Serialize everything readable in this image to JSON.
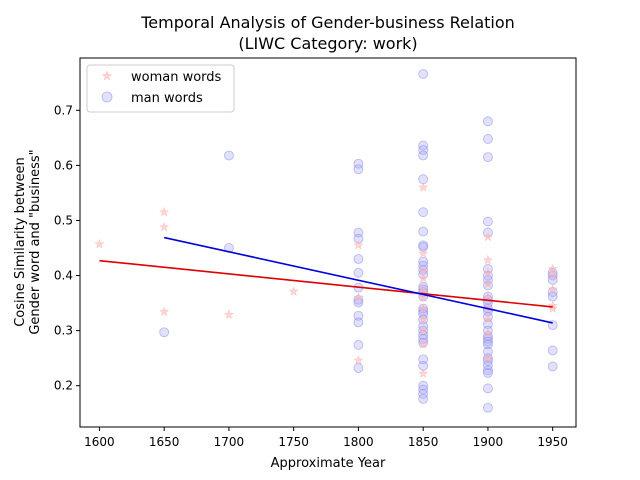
{
  "chart_data": {
    "type": "scatter",
    "title_lines": [
      "Temporal Analysis of Gender-business Relation",
      "(LIWC Category: work)"
    ],
    "xlabel": "Approximate Year",
    "ylabel_lines": [
      "Cosine Similarity between",
      "Gender word and \"business\""
    ],
    "xlim": [
      1585,
      1968
    ],
    "ylim": [
      0.125,
      0.795
    ],
    "xticks": [
      1600,
      1650,
      1700,
      1750,
      1800,
      1850,
      1900,
      1950
    ],
    "yticks": [
      0.2,
      0.3,
      0.4,
      0.5,
      0.6,
      0.7
    ],
    "legend_position": "upper-left",
    "series": [
      {
        "name": "woman words",
        "marker": "star",
        "color": "#ffb3b3",
        "trend_color": "#dd0000",
        "trend": {
          "x": [
            1600,
            1950
          ],
          "y": [
            0.427,
            0.343
          ]
        },
        "points": [
          [
            1600,
            0.457
          ],
          [
            1650,
            0.515
          ],
          [
            1650,
            0.488
          ],
          [
            1650,
            0.334
          ],
          [
            1700,
            0.329
          ],
          [
            1750,
            0.371
          ],
          [
            1800,
            0.455
          ],
          [
            1800,
            0.36
          ],
          [
            1800,
            0.246
          ],
          [
            1850,
            0.56
          ],
          [
            1850,
            0.44
          ],
          [
            1850,
            0.41
          ],
          [
            1850,
            0.395
          ],
          [
            1850,
            0.375
          ],
          [
            1850,
            0.36
          ],
          [
            1850,
            0.34
          ],
          [
            1850,
            0.32
          ],
          [
            1850,
            0.3
          ],
          [
            1850,
            0.275
          ],
          [
            1850,
            0.222
          ],
          [
            1900,
            0.47
          ],
          [
            1900,
            0.428
          ],
          [
            1900,
            0.405
          ],
          [
            1900,
            0.385
          ],
          [
            1900,
            0.36
          ],
          [
            1900,
            0.34
          ],
          [
            1900,
            0.32
          ],
          [
            1900,
            0.295
          ],
          [
            1900,
            0.25
          ],
          [
            1950,
            0.412
          ],
          [
            1950,
            0.4
          ],
          [
            1950,
            0.375
          ],
          [
            1950,
            0.345
          ],
          [
            1950,
            0.34
          ]
        ]
      },
      {
        "name": "man words",
        "marker": "circle",
        "color": "#aaaaf5",
        "trend_color": "#0000dd",
        "trend": {
          "x": [
            1650,
            1950
          ],
          "y": [
            0.469,
            0.314
          ]
        },
        "points": [
          [
            1650,
            0.297
          ],
          [
            1700,
            0.618
          ],
          [
            1700,
            0.45
          ],
          [
            1800,
            0.603
          ],
          [
            1800,
            0.593
          ],
          [
            1800,
            0.478
          ],
          [
            1800,
            0.467
          ],
          [
            1800,
            0.43
          ],
          [
            1800,
            0.405
          ],
          [
            1800,
            0.378
          ],
          [
            1800,
            0.356
          ],
          [
            1800,
            0.351
          ],
          [
            1800,
            0.327
          ],
          [
            1800,
            0.315
          ],
          [
            1800,
            0.274
          ],
          [
            1800,
            0.232
          ],
          [
            1850,
            0.766
          ],
          [
            1850,
            0.636
          ],
          [
            1850,
            0.628
          ],
          [
            1850,
            0.618
          ],
          [
            1850,
            0.575
          ],
          [
            1850,
            0.515
          ],
          [
            1850,
            0.48
          ],
          [
            1850,
            0.455
          ],
          [
            1850,
            0.452
          ],
          [
            1850,
            0.425
          ],
          [
            1850,
            0.418
          ],
          [
            1850,
            0.41
          ],
          [
            1850,
            0.402
          ],
          [
            1850,
            0.38
          ],
          [
            1850,
            0.375
          ],
          [
            1850,
            0.37
          ],
          [
            1850,
            0.362
          ],
          [
            1850,
            0.34
          ],
          [
            1850,
            0.335
          ],
          [
            1850,
            0.33
          ],
          [
            1850,
            0.32
          ],
          [
            1850,
            0.308
          ],
          [
            1850,
            0.3
          ],
          [
            1850,
            0.292
          ],
          [
            1850,
            0.285
          ],
          [
            1850,
            0.278
          ],
          [
            1850,
            0.248
          ],
          [
            1850,
            0.236
          ],
          [
            1850,
            0.2
          ],
          [
            1850,
            0.193
          ],
          [
            1850,
            0.185
          ],
          [
            1850,
            0.176
          ],
          [
            1900,
            0.68
          ],
          [
            1900,
            0.648
          ],
          [
            1900,
            0.615
          ],
          [
            1900,
            0.498
          ],
          [
            1900,
            0.478
          ],
          [
            1900,
            0.412
          ],
          [
            1900,
            0.4
          ],
          [
            1900,
            0.392
          ],
          [
            1900,
            0.382
          ],
          [
            1900,
            0.362
          ],
          [
            1900,
            0.356
          ],
          [
            1900,
            0.35
          ],
          [
            1900,
            0.34
          ],
          [
            1900,
            0.335
          ],
          [
            1900,
            0.325
          ],
          [
            1900,
            0.312
          ],
          [
            1900,
            0.3
          ],
          [
            1900,
            0.29
          ],
          [
            1900,
            0.285
          ],
          [
            1900,
            0.28
          ],
          [
            1900,
            0.275
          ],
          [
            1900,
            0.262
          ],
          [
            1900,
            0.25
          ],
          [
            1900,
            0.245
          ],
          [
            1900,
            0.237
          ],
          [
            1900,
            0.228
          ],
          [
            1900,
            0.223
          ],
          [
            1900,
            0.195
          ],
          [
            1900,
            0.16
          ],
          [
            1950,
            0.405
          ],
          [
            1950,
            0.4
          ],
          [
            1950,
            0.392
          ],
          [
            1950,
            0.37
          ],
          [
            1950,
            0.362
          ],
          [
            1950,
            0.31
          ],
          [
            1950,
            0.264
          ],
          [
            1950,
            0.235
          ]
        ]
      }
    ]
  }
}
